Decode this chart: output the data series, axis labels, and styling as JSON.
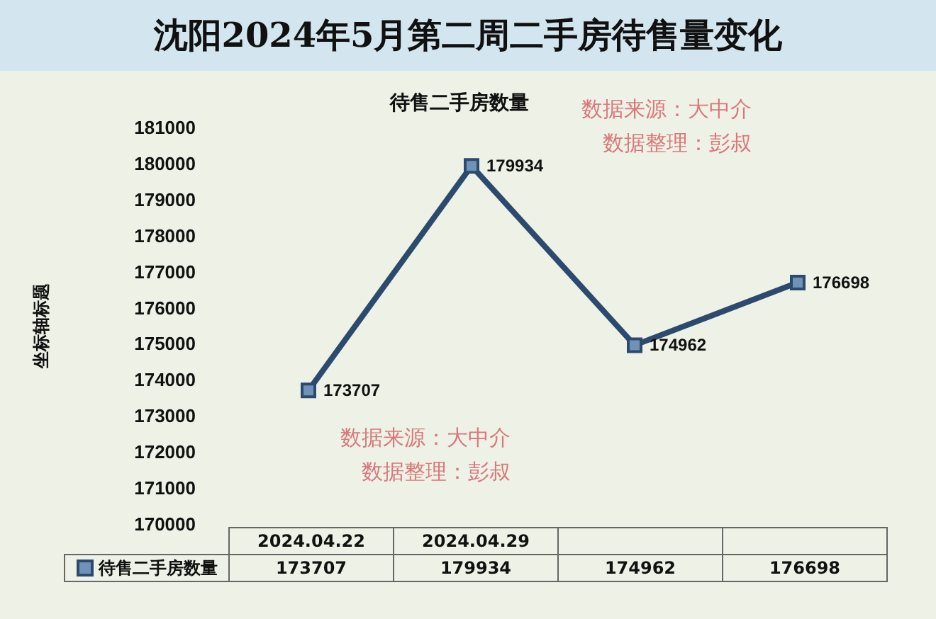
{
  "chart_data": {
    "type": "line",
    "title": "沈阳2024年5月第二周二手房待售量变化",
    "subtitle": "待售二手房数量",
    "ylabel": "坐标轴标题",
    "categories": [
      "2024.04.22",
      "2024.04.29",
      null,
      null
    ],
    "series": [
      {
        "name": "待售二手房数量",
        "color": "#2c4a6e",
        "values": [
          173707,
          179934,
          174962,
          176698
        ],
        "value_labels": [
          "173707",
          "179934",
          "174962",
          "176698"
        ]
      }
    ],
    "ylim": [
      170000,
      181000
    ],
    "yticks": [
      170000,
      171000,
      172000,
      173000,
      174000,
      175000,
      176000,
      177000,
      178000,
      179000,
      180000,
      181000
    ],
    "grid": false,
    "legend": "bottom left",
    "marker": "square",
    "line_style": "solid",
    "annotations": [
      "数据来源：大中介",
      "数据整理：彭叔",
      "数据来源：大中介",
      "数据整理：彭叔",
      "173707",
      "179934",
      "174962",
      "176698"
    ]
  }
}
